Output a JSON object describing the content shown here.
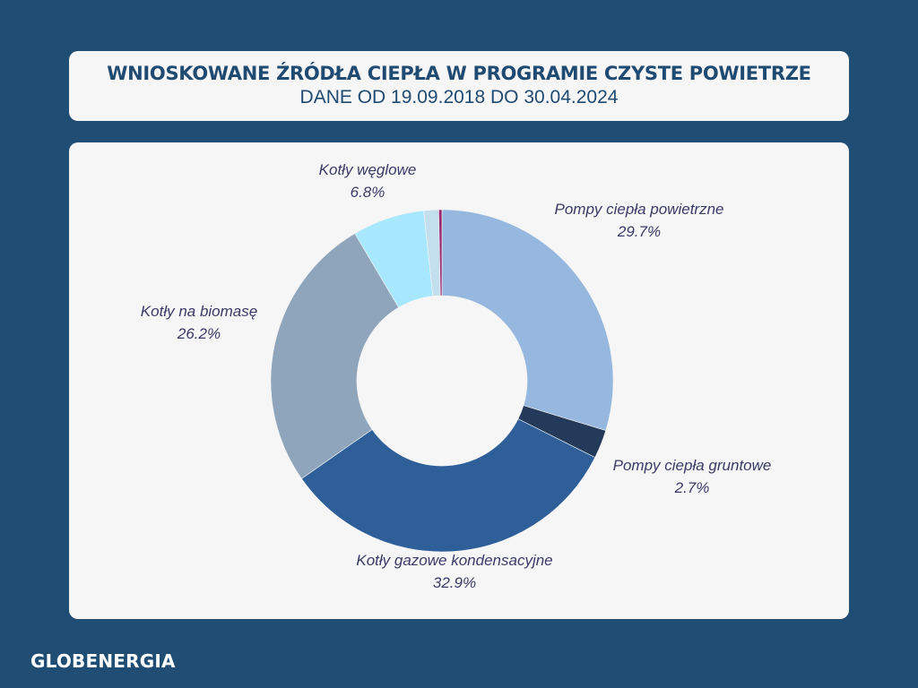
{
  "header": {
    "title": "WNIOSKOWANE ŹRÓDŁA CIEPŁA W PROGRAMIE CZYSTE POWIETRZE",
    "subtitle": "DANE OD 19.09.2018 DO 30.04.2024"
  },
  "brand": {
    "logo_text": "GLOBENERGIA"
  },
  "chart_data": {
    "type": "pie",
    "donut": true,
    "start_angle_deg": 0,
    "direction": "clockwise",
    "slices": [
      {
        "label": "Pompy ciepła powietrzne",
        "value_label": "29.7%",
        "value": 29.7,
        "color": "#97b8de",
        "show_label": true
      },
      {
        "label": "Pompy ciepła gruntowe",
        "value_label": "2.7%",
        "value": 2.7,
        "color": "#233a5a",
        "show_label": true
      },
      {
        "label": "Kotły gazowe kondensacyjne",
        "value_label": "32.9%",
        "value": 32.9,
        "color": "#2e5f99",
        "show_label": true
      },
      {
        "label": "Kotły na biomasę",
        "value_label": "26.2%",
        "value": 26.2,
        "color": "#8ea5bb",
        "show_label": true
      },
      {
        "label": "Kotły węglowe",
        "value_label": "6.8%",
        "value": 6.8,
        "color": "#a8e8ff",
        "show_label": true
      },
      {
        "label": "",
        "value_label": "",
        "value": 1.4,
        "color": "#c3dfee",
        "show_label": false
      },
      {
        "label": "",
        "value_label": "",
        "value": 0.3,
        "color": "#9a2a72",
        "show_label": false
      }
    ]
  }
}
